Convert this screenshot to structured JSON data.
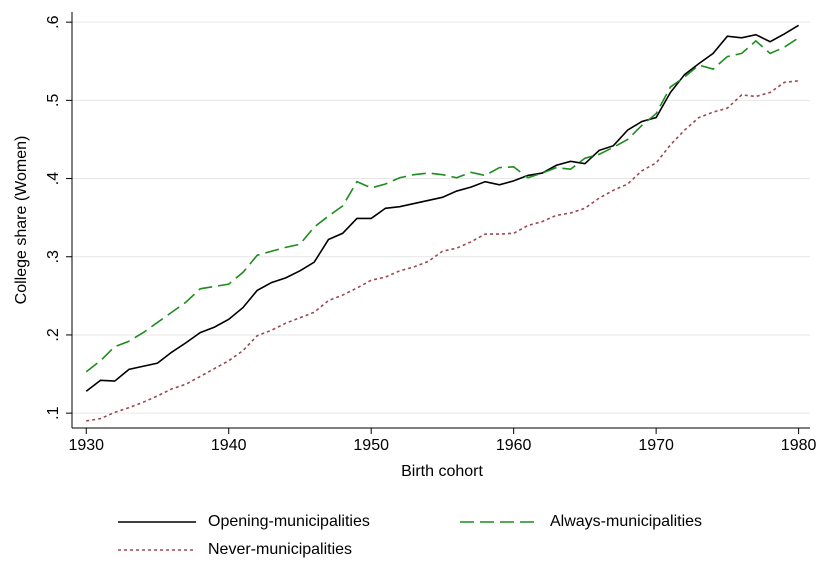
{
  "chart_data": {
    "type": "line",
    "ylabel": "College share (Women)",
    "xlabel": "Birth cohort",
    "x": [
      1930,
      1931,
      1932,
      1933,
      1934,
      1935,
      1936,
      1937,
      1938,
      1939,
      1940,
      1941,
      1942,
      1943,
      1944,
      1945,
      1946,
      1947,
      1948,
      1949,
      1950,
      1951,
      1952,
      1953,
      1954,
      1955,
      1956,
      1957,
      1958,
      1959,
      1960,
      1961,
      1962,
      1963,
      1964,
      1965,
      1966,
      1967,
      1968,
      1969,
      1970,
      1971,
      1972,
      1973,
      1974,
      1975,
      1976,
      1977,
      1978,
      1979,
      1980
    ],
    "series": [
      {
        "name": "Opening-municipalities",
        "color": "#000000",
        "dash": "solid",
        "values": [
          0.128,
          0.142,
          0.141,
          0.156,
          0.16,
          0.164,
          0.178,
          0.19,
          0.203,
          0.21,
          0.22,
          0.235,
          0.257,
          0.267,
          0.273,
          0.282,
          0.293,
          0.322,
          0.33,
          0.349,
          0.349,
          0.362,
          0.364,
          0.368,
          0.372,
          0.376,
          0.384,
          0.389,
          0.396,
          0.392,
          0.397,
          0.404,
          0.407,
          0.417,
          0.422,
          0.419,
          0.436,
          0.442,
          0.462,
          0.473,
          0.478,
          0.51,
          0.533,
          0.547,
          0.56,
          0.582,
          0.58,
          0.584,
          0.575,
          0.585,
          0.596
        ]
      },
      {
        "name": "Always-municipalities",
        "color": "#1e8c1e",
        "dash": "dashed",
        "values": [
          0.153,
          0.167,
          0.185,
          0.192,
          0.203,
          0.216,
          0.229,
          0.242,
          0.259,
          0.262,
          0.265,
          0.28,
          0.302,
          0.307,
          0.312,
          0.316,
          0.338,
          0.352,
          0.365,
          0.396,
          0.388,
          0.393,
          0.401,
          0.405,
          0.407,
          0.405,
          0.401,
          0.408,
          0.404,
          0.414,
          0.415,
          0.401,
          0.407,
          0.414,
          0.412,
          0.426,
          0.431,
          0.44,
          0.45,
          0.468,
          0.483,
          0.517,
          0.53,
          0.545,
          0.54,
          0.556,
          0.56,
          0.576,
          0.56,
          0.568,
          0.58
        ]
      },
      {
        "name": "Never-municipalities",
        "color": "#9c4a52",
        "dash": "dotted",
        "values": [
          0.09,
          0.093,
          0.101,
          0.107,
          0.114,
          0.122,
          0.131,
          0.137,
          0.147,
          0.157,
          0.167,
          0.18,
          0.199,
          0.206,
          0.215,
          0.222,
          0.229,
          0.244,
          0.251,
          0.26,
          0.27,
          0.274,
          0.282,
          0.287,
          0.294,
          0.307,
          0.311,
          0.319,
          0.329,
          0.329,
          0.33,
          0.34,
          0.345,
          0.353,
          0.356,
          0.362,
          0.375,
          0.385,
          0.393,
          0.41,
          0.42,
          0.443,
          0.462,
          0.478,
          0.485,
          0.49,
          0.507,
          0.505,
          0.51,
          0.523,
          0.525
        ]
      }
    ],
    "xlim": [
      1929,
      1980.8
    ],
    "ylim": [
      0.081,
      0.613
    ],
    "xticks": [
      1930,
      1940,
      1950,
      1960,
      1970,
      1980
    ],
    "yticks": [
      {
        "value": 0.1,
        "label": ".1"
      },
      {
        "value": 0.2,
        "label": ".2"
      },
      {
        "value": 0.3,
        "label": ".3"
      },
      {
        "value": 0.4,
        "label": ".4"
      },
      {
        "value": 0.5,
        "label": ".5"
      },
      {
        "value": 0.6,
        "label": ".6"
      }
    ],
    "grid": true,
    "legend": "bottom"
  }
}
